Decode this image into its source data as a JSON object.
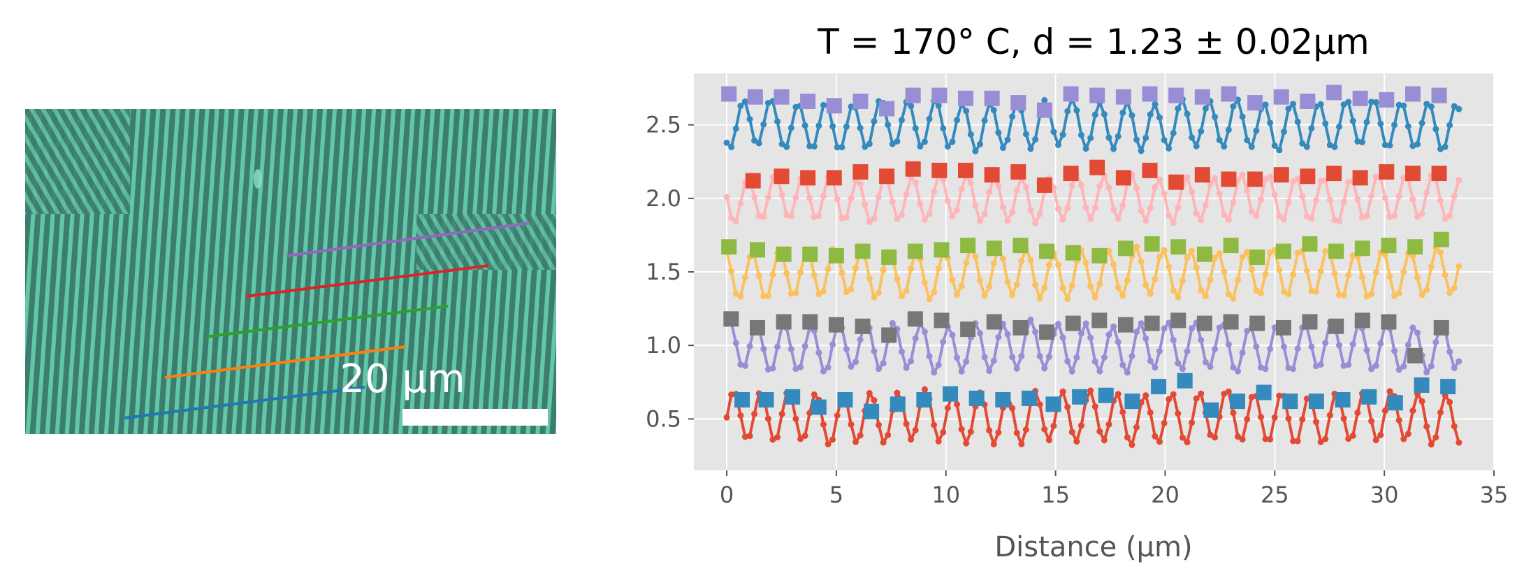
{
  "micrograph": {
    "scale_bar_label": "20 μm",
    "line_colors": [
      "#1f77b4",
      "#ff7f0e",
      "#2ca02c",
      "#d62728",
      "#9467bd"
    ],
    "background_color": "#3d7d6e",
    "stripe_color": "#62c7a8"
  },
  "chart_data": {
    "type": "line",
    "title": "T = 170° C, d = 1.23 ± 0.02μm",
    "xlabel": "Distance (μm)",
    "ylabel": "",
    "xlim": [
      -1.5,
      35
    ],
    "ylim": [
      0.15,
      2.85
    ],
    "xticks": [
      0,
      5,
      10,
      15,
      20,
      25,
      30,
      35
    ],
    "yticks": [
      0.5,
      1.0,
      1.5,
      2.0,
      2.5
    ],
    "xtick_labels": [
      "0",
      "5",
      "10",
      "15",
      "20",
      "25",
      "30",
      "35"
    ],
    "ytick_labels": [
      "0.5",
      "1.0",
      "1.5",
      "2.0",
      "2.5"
    ],
    "grid": true,
    "legend": "none",
    "profile_x_range": [
      0,
      33.4
    ],
    "profile_points": 160,
    "stripe_period": 1.25,
    "series": [
      {
        "profile_color": "#e24a33",
        "marker_color": "#348abd",
        "baseline": 0.51,
        "amplitude": 0.17,
        "marker_x": [
          0.7,
          1.8,
          3.0,
          4.2,
          5.4,
          6.6,
          7.8,
          9.0,
          10.2,
          11.4,
          12.6,
          13.8,
          14.9,
          16.1,
          17.3,
          18.5,
          19.7,
          20.9,
          22.1,
          23.3,
          24.5,
          25.7,
          26.9,
          28.1,
          29.3,
          30.5,
          31.7,
          32.9
        ],
        "marker_y": [
          0.63,
          0.63,
          0.65,
          0.58,
          0.63,
          0.55,
          0.6,
          0.63,
          0.67,
          0.64,
          0.63,
          0.64,
          0.6,
          0.65,
          0.66,
          0.62,
          0.72,
          0.76,
          0.56,
          0.62,
          0.68,
          0.62,
          0.62,
          0.63,
          0.65,
          0.61,
          0.73,
          0.72
        ]
      },
      {
        "profile_color": "#988ed5",
        "marker_color": "#777777",
        "baseline": 0.99,
        "amplitude": 0.16,
        "marker_x": [
          0.2,
          1.4,
          2.6,
          3.8,
          5.0,
          6.2,
          7.4,
          8.6,
          9.8,
          11.0,
          12.2,
          13.4,
          14.6,
          15.8,
          17.0,
          18.2,
          19.4,
          20.6,
          21.8,
          23.0,
          24.2,
          25.4,
          26.6,
          27.8,
          29.0,
          30.2,
          31.4,
          32.6
        ],
        "marker_y": [
          1.18,
          1.12,
          1.16,
          1.16,
          1.14,
          1.13,
          1.07,
          1.18,
          1.17,
          1.11,
          1.16,
          1.12,
          1.09,
          1.15,
          1.17,
          1.14,
          1.15,
          1.17,
          1.15,
          1.16,
          1.15,
          1.12,
          1.16,
          1.13,
          1.17,
          1.16,
          0.93,
          1.12
        ]
      },
      {
        "profile_color": "#fbc15e",
        "marker_color": "#8eba42",
        "baseline": 1.49,
        "amplitude": 0.16,
        "marker_x": [
          0.1,
          1.4,
          2.6,
          3.8,
          5.0,
          6.2,
          7.4,
          8.6,
          9.8,
          11.0,
          12.2,
          13.4,
          14.6,
          15.8,
          17.0,
          18.2,
          19.4,
          20.6,
          21.8,
          23.0,
          24.2,
          25.4,
          26.6,
          27.8,
          29.0,
          30.2,
          31.4,
          32.6
        ],
        "marker_y": [
          1.67,
          1.65,
          1.62,
          1.62,
          1.61,
          1.64,
          1.6,
          1.64,
          1.65,
          1.68,
          1.66,
          1.68,
          1.64,
          1.63,
          1.61,
          1.66,
          1.69,
          1.67,
          1.62,
          1.68,
          1.6,
          1.64,
          1.69,
          1.64,
          1.66,
          1.68,
          1.67,
          1.72
        ]
      },
      {
        "profile_color": "#ffb5b8",
        "marker_color": "#e24a33",
        "baseline": 2.0,
        "amplitude": 0.15,
        "marker_x": [
          1.2,
          2.5,
          3.7,
          4.9,
          6.1,
          7.3,
          8.5,
          9.7,
          10.9,
          12.1,
          13.3,
          14.5,
          15.7,
          16.9,
          18.1,
          19.3,
          20.5,
          21.7,
          22.9,
          24.1,
          25.3,
          26.5,
          27.7,
          28.9,
          30.1,
          31.3,
          32.5
        ],
        "marker_y": [
          2.12,
          2.15,
          2.14,
          2.14,
          2.18,
          2.15,
          2.2,
          2.19,
          2.19,
          2.16,
          2.18,
          2.09,
          2.17,
          2.21,
          2.14,
          2.19,
          2.11,
          2.16,
          2.13,
          2.13,
          2.16,
          2.15,
          2.17,
          2.14,
          2.18,
          2.17,
          2.17
        ]
      },
      {
        "profile_color": "#348abd",
        "marker_color": "#988ed5",
        "baseline": 2.5,
        "amplitude": 0.16,
        "marker_x": [
          0.1,
          1.3,
          2.5,
          3.7,
          4.9,
          6.1,
          7.3,
          8.5,
          9.7,
          10.9,
          12.1,
          13.3,
          14.5,
          15.7,
          16.9,
          18.1,
          19.3,
          20.5,
          21.7,
          22.9,
          24.1,
          25.3,
          26.5,
          27.7,
          28.9,
          30.1,
          31.3,
          32.5
        ],
        "marker_y": [
          2.71,
          2.69,
          2.69,
          2.66,
          2.63,
          2.66,
          2.61,
          2.7,
          2.7,
          2.68,
          2.68,
          2.65,
          2.6,
          2.71,
          2.7,
          2.69,
          2.71,
          2.7,
          2.69,
          2.71,
          2.65,
          2.69,
          2.66,
          2.72,
          2.68,
          2.67,
          2.71,
          2.7
        ]
      }
    ]
  }
}
